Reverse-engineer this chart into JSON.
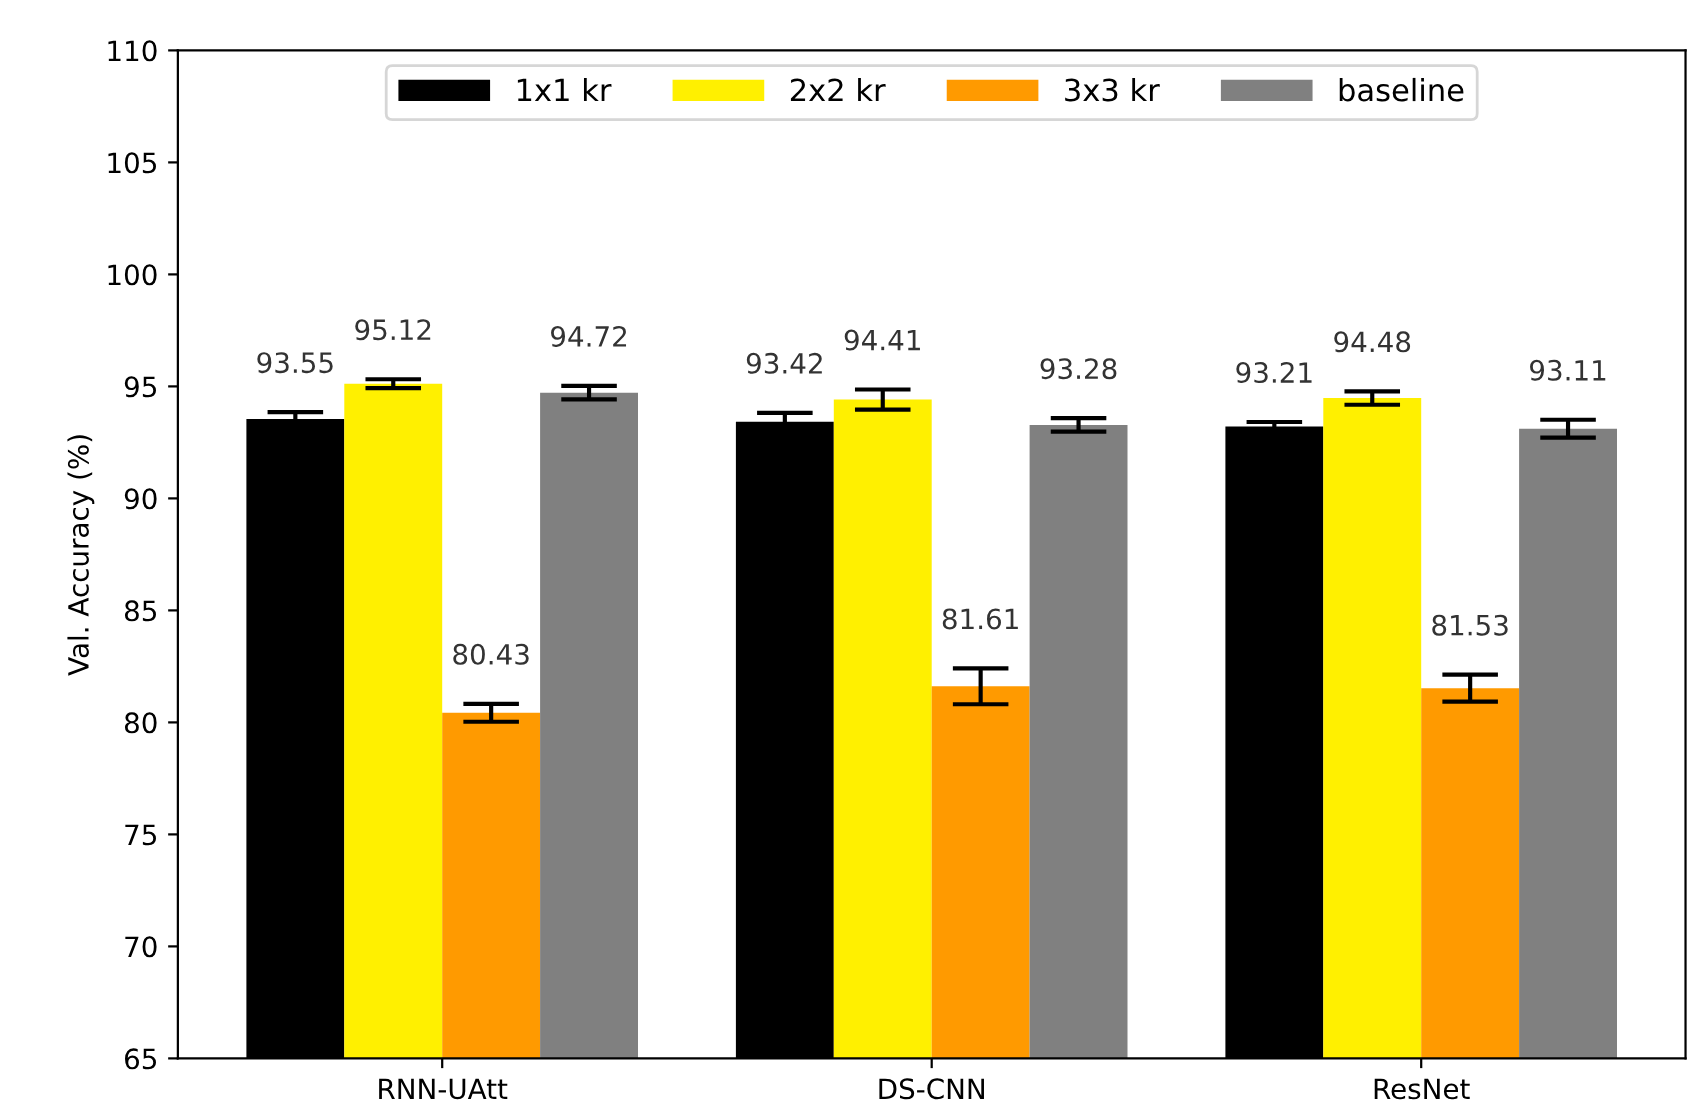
{
  "chart_data": {
    "type": "bar",
    "ylabel": "Val. Accuracy (%)",
    "categories": [
      "RNN-UAtt",
      "DS-CNN",
      "ResNet"
    ],
    "series": [
      {
        "name": "1x1 kr",
        "color": "#000000",
        "values": [
          93.55,
          93.42,
          93.21
        ],
        "errors": [
          0.3,
          0.4,
          0.2
        ]
      },
      {
        "name": "2x2 kr",
        "color": "#fff000",
        "values": [
          95.12,
          94.41,
          94.48
        ],
        "errors": [
          0.2,
          0.45,
          0.3
        ]
      },
      {
        "name": "3x3 kr",
        "color": "#ff9a00",
        "values": [
          80.43,
          81.61,
          81.53
        ],
        "errors": [
          0.4,
          0.8,
          0.6
        ]
      },
      {
        "name": "baseline",
        "color": "#808080",
        "values": [
          94.72,
          93.28,
          93.11
        ],
        "errors": [
          0.3,
          0.3,
          0.4
        ]
      }
    ],
    "ylim": [
      65,
      110
    ],
    "yticks": [
      65,
      70,
      75,
      80,
      85,
      90,
      95,
      100,
      105,
      110
    ],
    "data_labels": true,
    "legend": "top",
    "grid": false
  }
}
